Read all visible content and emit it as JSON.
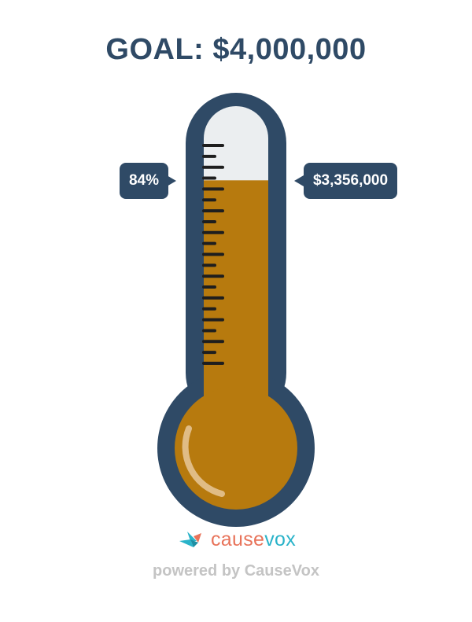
{
  "goal_title": "GOAL: $4,000,000",
  "progress": {
    "percent_label": "84%",
    "amount_label": "$3,356,000",
    "fraction": 0.84
  },
  "logo": {
    "part1": "cause",
    "part2": "vox",
    "icon": "bird-icon"
  },
  "powered_by": "powered by CauseVox",
  "colors": {
    "frame": "#2F4A66",
    "fill": "#B77A0E",
    "empty": "#EBEEF0",
    "logo_orange": "#E8735A",
    "logo_teal": "#2AB3C9"
  }
}
